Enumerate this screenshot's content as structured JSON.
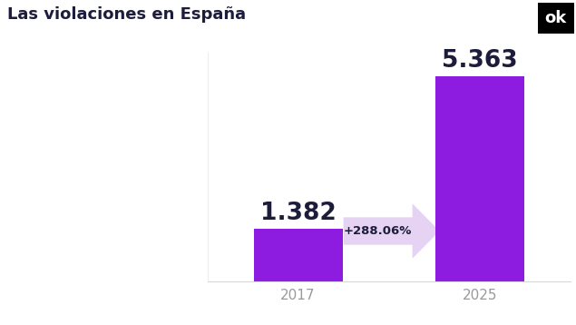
{
  "chart_data": {
    "type": "bar",
    "title": "Las violaciones en España",
    "categories": [
      "2017",
      "2025"
    ],
    "values": [
      1382,
      5363
    ],
    "value_labels": [
      "1.382",
      "5.363"
    ],
    "data_labels": true,
    "color": "#8e1be0",
    "ylim": [
      0,
      6000
    ],
    "yticks": [],
    "tick_labels": "x",
    "grid": false,
    "annotations": [
      "+288.06%",
      "ok"
    ]
  }
}
